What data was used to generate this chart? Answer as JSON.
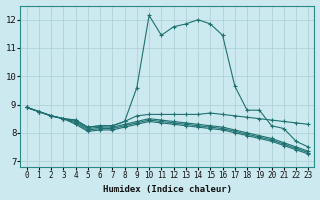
{
  "xlabel": "Humidex (Indice chaleur)",
  "ylabel": "",
  "xlim": [
    -0.5,
    23.5
  ],
  "ylim": [
    6.8,
    12.5
  ],
  "xticks": [
    0,
    1,
    2,
    3,
    4,
    5,
    6,
    7,
    8,
    9,
    10,
    11,
    12,
    13,
    14,
    15,
    16,
    17,
    18,
    19,
    20,
    21,
    22,
    23
  ],
  "yticks": [
    7,
    8,
    9,
    10,
    11,
    12
  ],
  "background_color": "#cce9ef",
  "grid_color": "#aacdd5",
  "line_color": "#1e7070",
  "curves": [
    {
      "x": [
        0,
        1,
        2,
        3,
        4,
        5,
        6,
        7,
        8,
        9,
        10,
        11,
        12,
        13,
        14,
        15,
        16,
        17,
        18,
        19,
        20,
        21,
        22,
        23
      ],
      "y": [
        8.9,
        8.75,
        8.6,
        8.5,
        8.45,
        8.2,
        8.25,
        8.25,
        8.4,
        9.6,
        12.15,
        11.45,
        11.75,
        11.85,
        12.0,
        11.85,
        11.45,
        9.65,
        8.8,
        8.8,
        8.25,
        8.15,
        7.7,
        7.5
      ],
      "marker": true
    },
    {
      "x": [
        0,
        1,
        2,
        3,
        4,
        5,
        6,
        7,
        8,
        9,
        10,
        11,
        12,
        13,
        14,
        15,
        16,
        17,
        18,
        19,
        20,
        21,
        22,
        23
      ],
      "y": [
        8.9,
        8.75,
        8.6,
        8.5,
        8.45,
        8.2,
        8.25,
        8.25,
        8.4,
        8.6,
        8.65,
        8.65,
        8.65,
        8.65,
        8.65,
        8.7,
        8.65,
        8.6,
        8.55,
        8.5,
        8.45,
        8.4,
        8.35,
        8.3
      ],
      "marker": true
    },
    {
      "x": [
        0,
        1,
        2,
        3,
        4,
        5,
        6,
        7,
        8,
        9,
        10,
        11,
        12,
        13,
        14,
        15,
        16,
        17,
        18,
        19,
        20,
        21,
        22,
        23
      ],
      "y": [
        8.9,
        8.75,
        8.6,
        8.5,
        8.4,
        8.15,
        8.2,
        8.2,
        8.3,
        8.4,
        8.5,
        8.45,
        8.4,
        8.35,
        8.3,
        8.25,
        8.2,
        8.1,
        8.0,
        7.9,
        7.8,
        7.65,
        7.5,
        7.35
      ],
      "marker": true
    },
    {
      "x": [
        0,
        1,
        2,
        3,
        4,
        5,
        6,
        7,
        8,
        9,
        10,
        11,
        12,
        13,
        14,
        15,
        16,
        17,
        18,
        19,
        20,
        21,
        22,
        23
      ],
      "y": [
        8.9,
        8.75,
        8.6,
        8.5,
        8.35,
        8.1,
        8.15,
        8.15,
        8.25,
        8.35,
        8.45,
        8.4,
        8.35,
        8.3,
        8.25,
        8.2,
        8.15,
        8.05,
        7.95,
        7.85,
        7.75,
        7.6,
        7.45,
        7.3
      ],
      "marker": true
    },
    {
      "x": [
        0,
        1,
        2,
        3,
        4,
        5,
        6,
        7,
        8,
        9,
        10,
        11,
        12,
        13,
        14,
        15,
        16,
        17,
        18,
        19,
        20,
        21,
        22,
        23
      ],
      "y": [
        8.9,
        8.75,
        8.6,
        8.5,
        8.3,
        8.05,
        8.1,
        8.1,
        8.2,
        8.3,
        8.4,
        8.35,
        8.3,
        8.25,
        8.2,
        8.15,
        8.1,
        8.0,
        7.9,
        7.8,
        7.7,
        7.55,
        7.4,
        7.25
      ],
      "marker": true
    }
  ]
}
